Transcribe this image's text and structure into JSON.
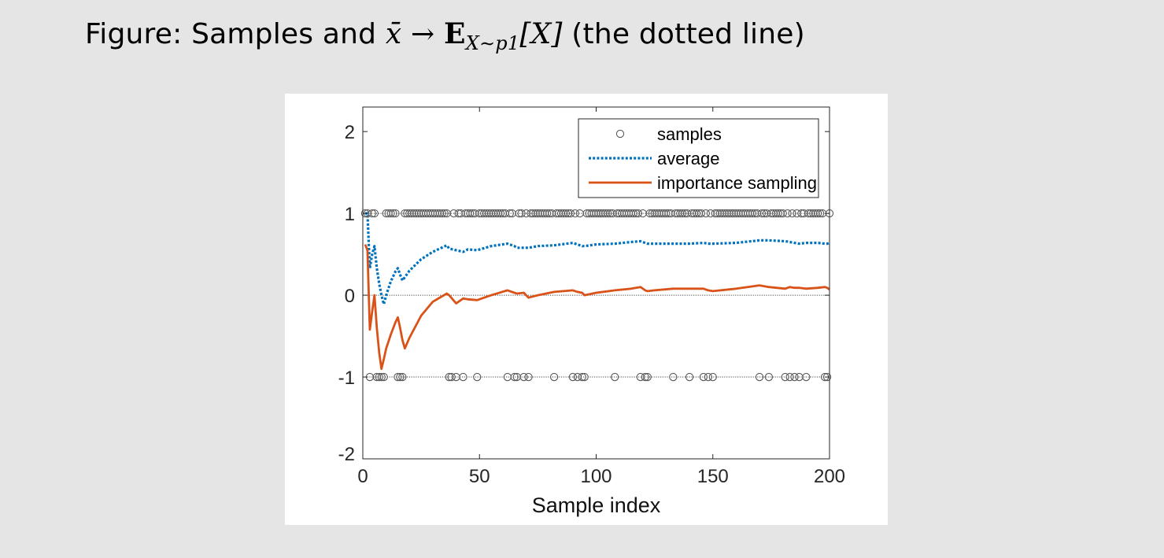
{
  "caption": {
    "prefix": "Figure: Samples and ",
    "xbar": "x̄",
    "arrow": "→",
    "expectation": "E",
    "subscript": "X∼p1",
    "arg": "[X]",
    "suffix": " (the dotted line)"
  },
  "chart_data": {
    "type": "line",
    "title": "",
    "xlabel": "Sample index",
    "ylabel": "",
    "xlim": [
      0,
      200
    ],
    "ylim": [
      -2,
      2.3
    ],
    "xticks": [
      0,
      50,
      100,
      150,
      200
    ],
    "yticks": [
      -2,
      -1,
      0,
      1,
      2
    ],
    "xtick_labels": [
      "0",
      "50",
      "100",
      "150",
      "200"
    ],
    "ytick_labels": [
      "-2",
      "-1",
      "0",
      "1",
      "2"
    ],
    "reference_lines": [
      1,
      0,
      -1
    ],
    "legend": {
      "position": "top-right",
      "entries": [
        "samples",
        "average",
        "importance sampling"
      ]
    },
    "samples": {
      "name": "samples",
      "marker": "circle",
      "color": "#5a5a5a",
      "neg_x": [
        3,
        6,
        7,
        8,
        9,
        15,
        16,
        17,
        37,
        38,
        40,
        43,
        49,
        62,
        65,
        66,
        69,
        71,
        82,
        90,
        92,
        94,
        95,
        108,
        119,
        121,
        122,
        133,
        140,
        146,
        148,
        150,
        170,
        174,
        181,
        183,
        185,
        187,
        190,
        198,
        199
      ],
      "pos_value": 1,
      "neg_value": -1
    },
    "series": [
      {
        "name": "average",
        "style": "dotted",
        "color": "#0072bd",
        "x": [
          1,
          2,
          3,
          4,
          5,
          6,
          7,
          8,
          9,
          10,
          12,
          14,
          15,
          16,
          17,
          18,
          20,
          25,
          30,
          36,
          37,
          40,
          43,
          45,
          49,
          55,
          62,
          65,
          66,
          69,
          71,
          75,
          82,
          90,
          92,
          94,
          95,
          100,
          108,
          115,
          119,
          121,
          122,
          125,
          133,
          140,
          146,
          148,
          150,
          160,
          170,
          174,
          181,
          183,
          185,
          187,
          190,
          195,
          198,
          199,
          200
        ],
        "values": [
          1,
          1,
          0.33,
          0.5,
          0.6,
          0.33,
          0.14,
          0,
          -0.11,
          0,
          0.17,
          0.29,
          0.33,
          0.25,
          0.18,
          0.22,
          0.3,
          0.44,
          0.53,
          0.61,
          0.57,
          0.55,
          0.53,
          0.56,
          0.55,
          0.6,
          0.63,
          0.6,
          0.58,
          0.58,
          0.58,
          0.6,
          0.61,
          0.64,
          0.62,
          0.6,
          0.6,
          0.62,
          0.63,
          0.65,
          0.66,
          0.64,
          0.63,
          0.63,
          0.63,
          0.63,
          0.64,
          0.63,
          0.63,
          0.64,
          0.67,
          0.67,
          0.66,
          0.65,
          0.64,
          0.63,
          0.64,
          0.64,
          0.63,
          0.63,
          0.64
        ]
      },
      {
        "name": "importance sampling",
        "style": "solid",
        "color": "#d95319",
        "x": [
          1,
          2,
          3,
          4,
          5,
          6,
          7,
          8,
          9,
          10,
          12,
          14,
          15,
          16,
          17,
          18,
          20,
          25,
          30,
          36,
          37,
          40,
          43,
          45,
          49,
          55,
          62,
          65,
          66,
          69,
          71,
          75,
          82,
          90,
          92,
          94,
          95,
          100,
          108,
          115,
          119,
          121,
          122,
          125,
          133,
          140,
          146,
          148,
          150,
          160,
          170,
          174,
          181,
          183,
          185,
          187,
          190,
          195,
          198,
          199,
          200
        ],
        "values": [
          0.62,
          0.55,
          -0.42,
          -0.2,
          0,
          -0.4,
          -0.7,
          -0.9,
          -0.78,
          -0.65,
          -0.48,
          -0.33,
          -0.27,
          -0.4,
          -0.55,
          -0.65,
          -0.52,
          -0.25,
          -0.08,
          0.02,
          0,
          -0.1,
          -0.04,
          -0.05,
          -0.06,
          0,
          0.06,
          0.03,
          0.02,
          0.03,
          -0.03,
          0,
          0.04,
          0.06,
          0.04,
          0.03,
          0,
          0.03,
          0.06,
          0.08,
          0.1,
          0.06,
          0.05,
          0.06,
          0.08,
          0.08,
          0.08,
          0.06,
          0.05,
          0.08,
          0.12,
          0.1,
          0.08,
          0.1,
          0.09,
          0.09,
          0.08,
          0.09,
          0.1,
          0.09,
          0.07
        ]
      }
    ]
  }
}
